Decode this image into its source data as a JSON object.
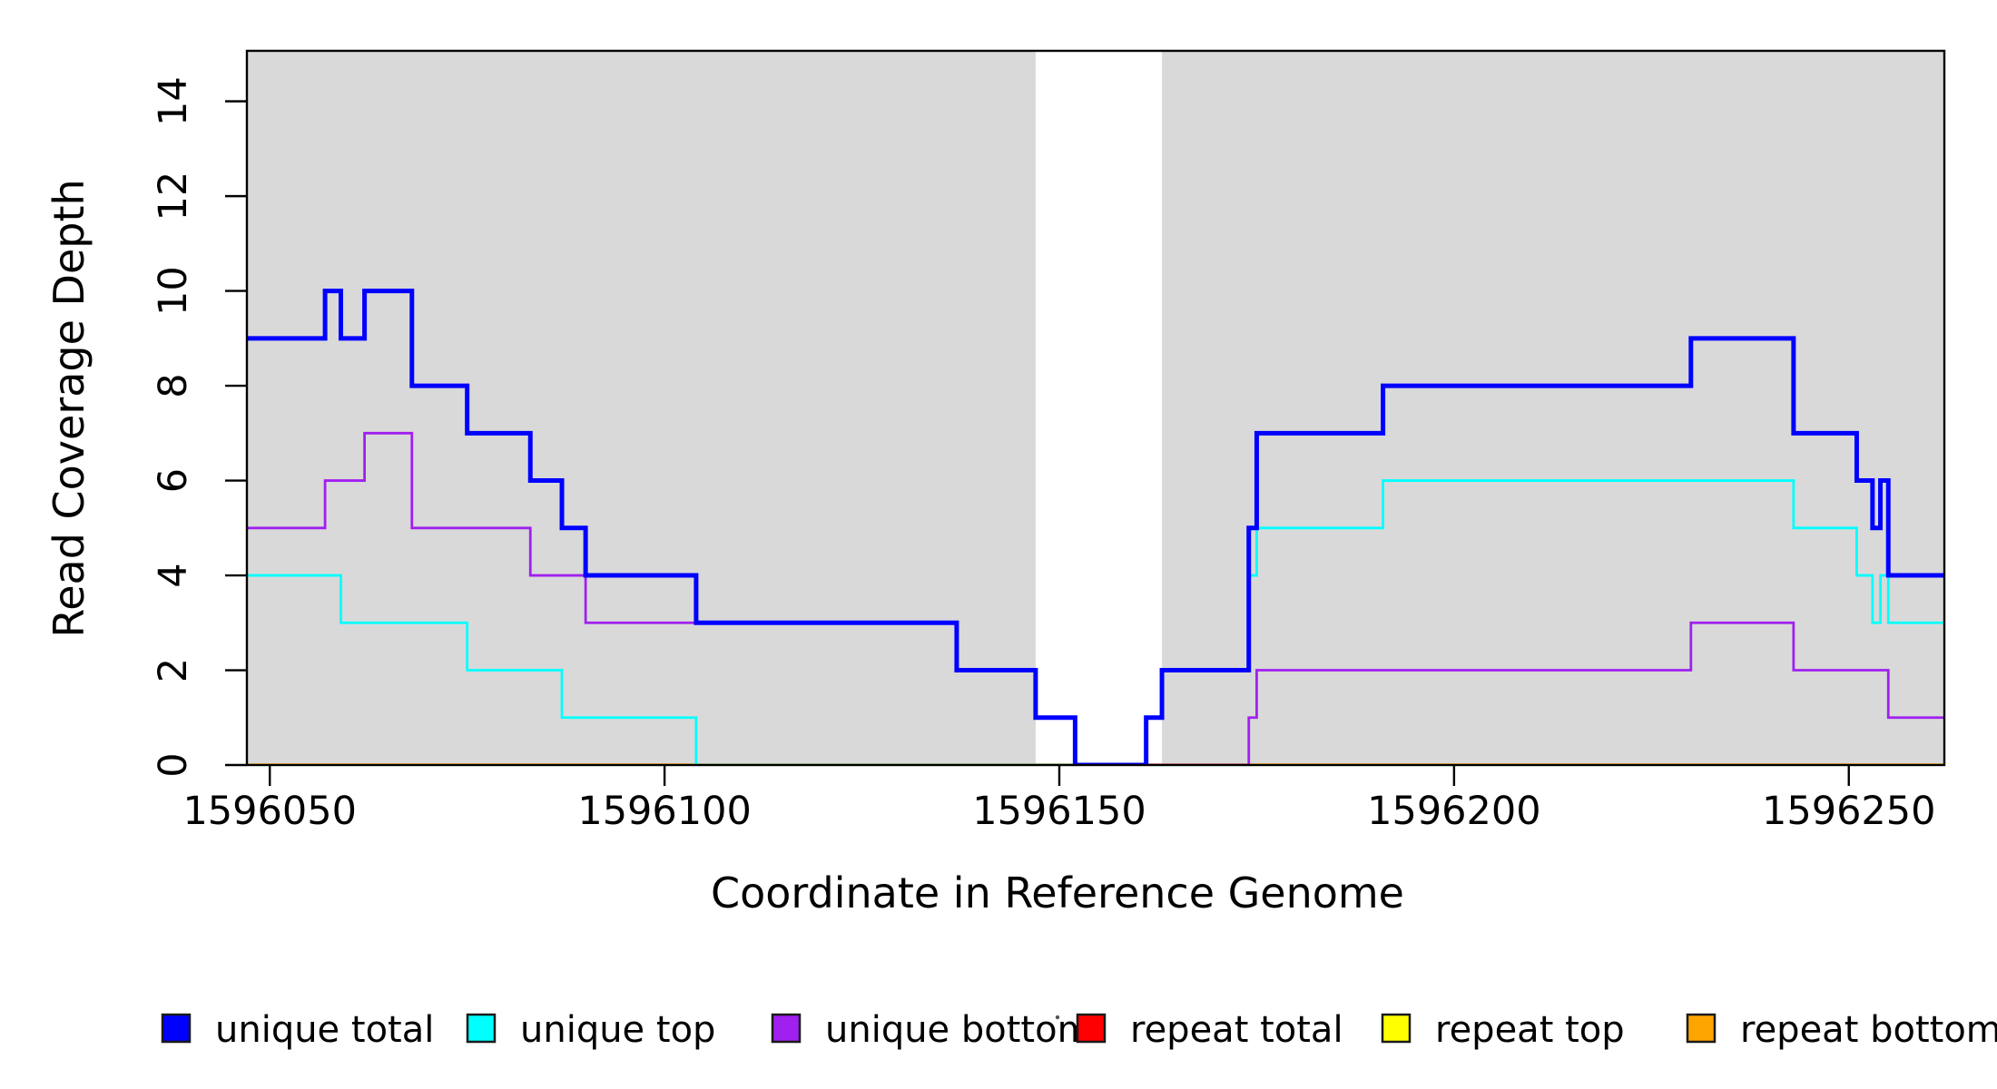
{
  "chart_data": {
    "type": "line",
    "subtype": "step-coverage",
    "title": "",
    "xlabel": "Coordinate in Reference Genome",
    "ylabel": "Read Coverage Depth",
    "xlim": [
      1596047.1,
      1596262.1
    ],
    "ylim": [
      0,
      15.065
    ],
    "x_ticks": [
      1596050,
      1596100,
      1596150,
      1596200,
      1596250
    ],
    "y_ticks": [
      0,
      2,
      4,
      6,
      8,
      10,
      12,
      14
    ],
    "grid": false,
    "legend_position": "bottom",
    "plot_background": "#ffffff",
    "repeat_region_color": "#d9d9d9",
    "background_bands": [
      {
        "x0": 1596047.1,
        "x1": 1596147,
        "color": "#d9d9d9"
      },
      {
        "x0": 1596163,
        "x1": 1596262.1,
        "color": "#d9d9d9"
      }
    ],
    "series": [
      {
        "name": "repeat total",
        "color": "#ff0000",
        "width": 2.8,
        "points": [
          [
            1596047.1,
            0
          ],
          [
            1596262.1,
            0
          ]
        ]
      },
      {
        "name": "repeat top",
        "color": "#ffff00",
        "width": 2.8,
        "points": [
          [
            1596047.1,
            0
          ],
          [
            1596262.1,
            0
          ]
        ]
      },
      {
        "name": "repeat bottom",
        "color": "#ffa500",
        "width": 3.6,
        "points": [
          [
            1596047.1,
            0
          ],
          [
            1596262.1,
            0
          ]
        ]
      },
      {
        "name": "unique top",
        "color": "#00ffff",
        "width": 2.8,
        "points": [
          [
            1596047.1,
            4
          ],
          [
            1596059,
            3
          ],
          [
            1596075,
            2
          ],
          [
            1596087,
            1
          ],
          [
            1596104,
            0
          ],
          [
            1596161,
            1
          ],
          [
            1596163,
            2
          ],
          [
            1596174,
            4
          ],
          [
            1596175,
            5
          ],
          [
            1596191,
            6
          ],
          [
            1596243,
            5
          ],
          [
            1596251,
            4
          ],
          [
            1596253,
            3
          ],
          [
            1596254,
            4
          ],
          [
            1596255,
            3
          ],
          [
            1596262.1,
            3
          ]
        ]
      },
      {
        "name": "unique bottom",
        "color": "#a020f0",
        "width": 2.8,
        "points": [
          [
            1596047.1,
            5
          ],
          [
            1596057,
            6
          ],
          [
            1596062,
            7
          ],
          [
            1596068,
            5
          ],
          [
            1596083,
            4
          ],
          [
            1596090,
            3
          ],
          [
            1596137,
            2
          ],
          [
            1596147,
            1
          ],
          [
            1596152,
            0
          ],
          [
            1596174,
            1
          ],
          [
            1596175,
            2
          ],
          [
            1596230,
            3
          ],
          [
            1596243,
            2
          ],
          [
            1596255,
            1
          ],
          [
            1596262.1,
            1
          ]
        ]
      },
      {
        "name": "unique total",
        "color": "#0000ff",
        "width": 5,
        "points": [
          [
            1596047.1,
            9
          ],
          [
            1596057,
            10
          ],
          [
            1596059,
            9
          ],
          [
            1596062,
            10
          ],
          [
            1596068,
            8
          ],
          [
            1596075,
            7
          ],
          [
            1596083,
            6
          ],
          [
            1596087,
            5
          ],
          [
            1596090,
            4
          ],
          [
            1596104,
            3
          ],
          [
            1596137,
            2
          ],
          [
            1596147,
            1
          ],
          [
            1596152,
            0
          ],
          [
            1596161,
            1
          ],
          [
            1596163,
            2
          ],
          [
            1596174,
            5
          ],
          [
            1596175,
            7
          ],
          [
            1596191,
            8
          ],
          [
            1596230,
            9
          ],
          [
            1596243,
            7
          ],
          [
            1596251,
            6
          ],
          [
            1596253,
            5
          ],
          [
            1596254,
            6
          ],
          [
            1596255,
            4
          ],
          [
            1596262.1,
            4
          ]
        ]
      }
    ],
    "legend": {
      "items": [
        {
          "label": "unique total",
          "color": "#0000ff"
        },
        {
          "label": "unique top",
          "color": "#00ffff"
        },
        {
          "label": "unique bottom",
          "color": "#a020f0"
        },
        {
          "label": "repeat total",
          "color": "#ff0000"
        },
        {
          "label": "repeat top",
          "color": "#ffff00"
        },
        {
          "label": "repeat bottom",
          "color": "#ffa500"
        }
      ]
    }
  }
}
